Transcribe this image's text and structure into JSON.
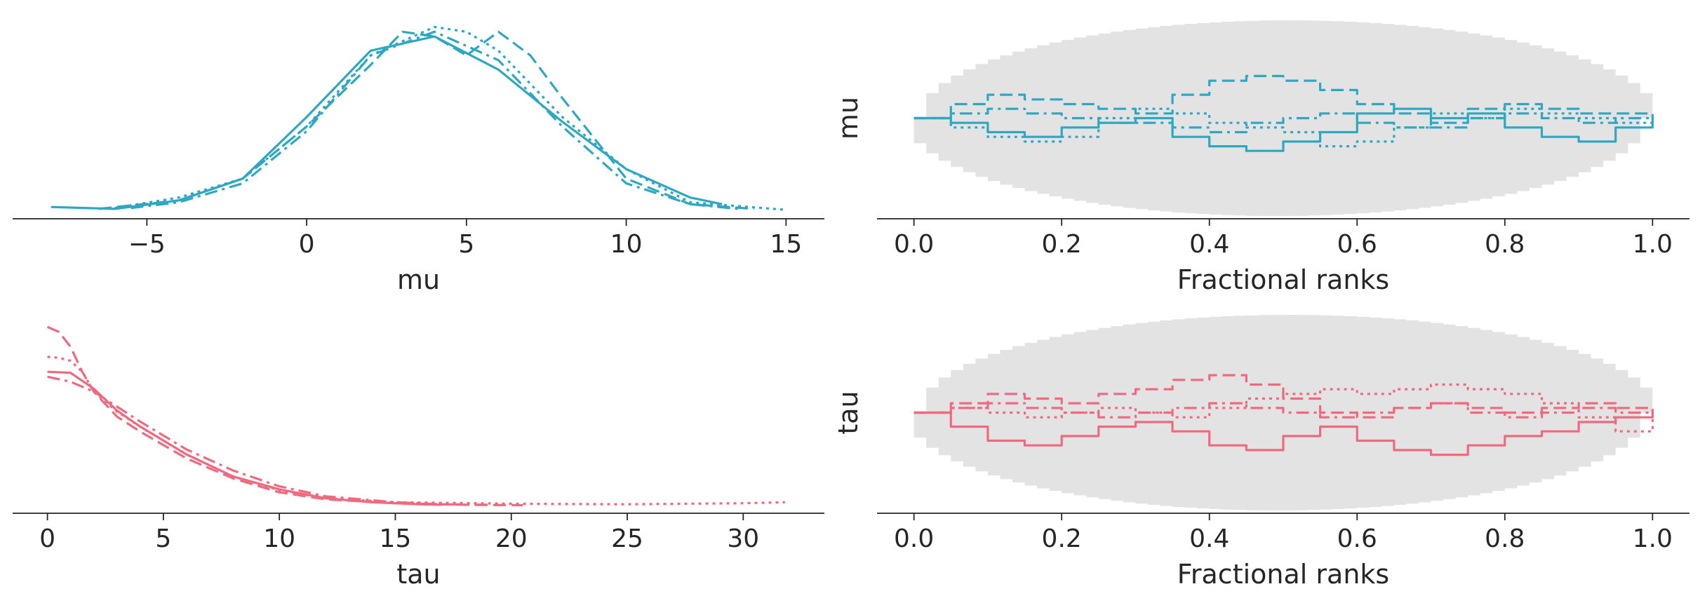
{
  "chart_data": [
    {
      "type": "line",
      "kind": "kde",
      "xlabel": "mu",
      "xlim": [
        -9.2,
        16.2
      ],
      "xticks": [
        "−5",
        "0",
        "5",
        "10",
        "15"
      ],
      "xtick_values": [
        -5,
        0,
        5,
        10,
        15
      ],
      "grid": false,
      "color": "#2ea8c2",
      "series": [
        {
          "linestyle": "solid",
          "x": [
            -8,
            -6,
            -4,
            -2,
            0,
            2,
            4,
            6,
            8,
            10,
            12,
            13
          ],
          "y": [
            0.005,
            0.003,
            0.012,
            0.035,
            0.1,
            0.17,
            0.185,
            0.15,
            0.095,
            0.045,
            0.015,
            0.008
          ]
        },
        {
          "linestyle": "dashed",
          "x": [
            -6.5,
            -4,
            -2,
            0,
            2,
            3,
            4,
            5,
            6,
            7,
            8,
            10,
            12,
            14
          ],
          "y": [
            0.003,
            0.012,
            0.035,
            0.09,
            0.155,
            0.19,
            0.185,
            0.165,
            0.19,
            0.165,
            0.12,
            0.035,
            0.008,
            0.003
          ]
        },
        {
          "linestyle": "dotted",
          "x": [
            -6,
            -4,
            -2,
            0,
            2,
            4,
            5,
            6,
            8,
            10,
            12,
            15
          ],
          "y": [
            0.004,
            0.015,
            0.035,
            0.09,
            0.165,
            0.195,
            0.19,
            0.17,
            0.1,
            0.045,
            0.01,
            0.002
          ]
        },
        {
          "linestyle": "dashdot",
          "x": [
            -5.5,
            -4,
            -2,
            0,
            2,
            4,
            6,
            8,
            10,
            12,
            13.5
          ],
          "y": [
            0.004,
            0.01,
            0.03,
            0.085,
            0.165,
            0.19,
            0.16,
            0.09,
            0.03,
            0.008,
            0.003
          ]
        }
      ]
    },
    {
      "type": "line",
      "kind": "rank_plot",
      "xlabel": "Fractional ranks",
      "ylabel": "mu",
      "xlim": [
        -0.05,
        1.05
      ],
      "xticks": [
        "0.0",
        "0.2",
        "0.4",
        "0.6",
        "0.8",
        "1.0"
      ],
      "xtick_values": [
        0,
        0.2,
        0.4,
        0.6,
        0.8,
        1.0
      ],
      "grid": false,
      "band_color": "#e3e3e3",
      "color": "#2ea8c2",
      "series": [
        {
          "linestyle": "solid",
          "x": [
            0,
            0.05,
            0.1,
            0.15,
            0.2,
            0.25,
            0.3,
            0.35,
            0.4,
            0.45,
            0.5,
            0.55,
            0.6,
            0.65,
            0.7,
            0.75,
            0.8,
            0.85,
            0.9,
            0.95,
            1.0
          ],
          "y": [
            0,
            -0.05,
            -0.15,
            -0.2,
            -0.1,
            -0.05,
            0,
            -0.2,
            -0.3,
            -0.35,
            -0.25,
            -0.15,
            0.05,
            0.1,
            0.0,
            0.05,
            -0.1,
            -0.2,
            -0.25,
            -0.1,
            0
          ]
        },
        {
          "linestyle": "dashed",
          "x": [
            0,
            0.05,
            0.1,
            0.15,
            0.2,
            0.25,
            0.3,
            0.35,
            0.4,
            0.45,
            0.5,
            0.55,
            0.6,
            0.65,
            0.7,
            0.75,
            0.8,
            0.85,
            0.9,
            0.95,
            1.0
          ],
          "y": [
            0,
            0.15,
            0.25,
            0.2,
            0.15,
            0.1,
            0.05,
            0.25,
            0.4,
            0.45,
            0.4,
            0.3,
            0.15,
            0.05,
            -0.05,
            0.1,
            0.15,
            0.1,
            0.05,
            0.05,
            0
          ]
        },
        {
          "linestyle": "dotted",
          "x": [
            0,
            0.05,
            0.1,
            0.15,
            0.2,
            0.25,
            0.3,
            0.35,
            0.4,
            0.45,
            0.5,
            0.55,
            0.6,
            0.65,
            0.7,
            0.75,
            0.8,
            0.85,
            0.9,
            0.95,
            1.0
          ],
          "y": [
            0,
            -0.1,
            -0.2,
            -0.25,
            -0.2,
            0.0,
            0.1,
            0.05,
            -0.05,
            -0.1,
            -0.15,
            -0.3,
            -0.25,
            -0.1,
            0.05,
            0.0,
            0.1,
            0.05,
            0.0,
            -0.05,
            0
          ]
        },
        {
          "linestyle": "dashdot",
          "x": [
            0,
            0.05,
            0.1,
            0.15,
            0.2,
            0.25,
            0.3,
            0.35,
            0.4,
            0.45,
            0.5,
            0.55,
            0.6,
            0.65,
            0.7,
            0.75,
            0.8,
            0.85,
            0.9,
            0.95,
            1.0
          ],
          "y": [
            0,
            0.05,
            0.1,
            0.05,
            0.0,
            -0.05,
            -0.05,
            -0.1,
            -0.15,
            -0.05,
            0.0,
            0.05,
            -0.05,
            -0.1,
            -0.1,
            0.0,
            0.05,
            0.0,
            -0.05,
            0.0,
            0
          ]
        }
      ]
    },
    {
      "type": "line",
      "kind": "kde",
      "xlabel": "tau",
      "xlim": [
        -1.5,
        33.5
      ],
      "xticks": [
        "0",
        "5",
        "10",
        "15",
        "20",
        "25",
        "30"
      ],
      "xtick_values": [
        0,
        5,
        10,
        15,
        20,
        25,
        30
      ],
      "grid": false,
      "color": "#f0697e",
      "series": [
        {
          "linestyle": "solid",
          "x": [
            0,
            1,
            2,
            3,
            4,
            6,
            8,
            10,
            12,
            14,
            16,
            17
          ],
          "y": [
            0.135,
            0.134,
            0.118,
            0.096,
            0.08,
            0.052,
            0.03,
            0.017,
            0.008,
            0.004,
            0.002,
            0.0015
          ]
        },
        {
          "linestyle": "dashed",
          "x": [
            0,
            0.5,
            1,
            1.5,
            2,
            3,
            4,
            6,
            8,
            10,
            12,
            15,
            18,
            20.5
          ],
          "y": [
            0.18,
            0.175,
            0.16,
            0.135,
            0.115,
            0.09,
            0.075,
            0.048,
            0.028,
            0.014,
            0.007,
            0.003,
            0.0015,
            0.001
          ]
        },
        {
          "linestyle": "dotted",
          "x": [
            0,
            0.5,
            1,
            1.5,
            2,
            3,
            4,
            6,
            8,
            10,
            12,
            15,
            20,
            25,
            30,
            31.8
          ],
          "y": [
            0.15,
            0.149,
            0.146,
            0.135,
            0.115,
            0.095,
            0.08,
            0.052,
            0.03,
            0.016,
            0.008,
            0.004,
            0.0025,
            0.002,
            0.003,
            0.004
          ]
        },
        {
          "linestyle": "dashdot",
          "x": [
            0,
            1,
            2,
            3,
            4,
            6,
            8,
            10,
            12,
            15,
            17,
            19
          ],
          "y": [
            0.13,
            0.125,
            0.115,
            0.1,
            0.085,
            0.057,
            0.036,
            0.02,
            0.01,
            0.004,
            0.002,
            0.0015
          ]
        }
      ]
    },
    {
      "type": "line",
      "kind": "rank_plot",
      "xlabel": "Fractional ranks",
      "ylabel": "tau",
      "xlim": [
        -0.05,
        1.05
      ],
      "xticks": [
        "0.0",
        "0.2",
        "0.4",
        "0.6",
        "0.8",
        "1.0"
      ],
      "xtick_values": [
        0,
        0.2,
        0.4,
        0.6,
        0.8,
        1.0
      ],
      "grid": false,
      "band_color": "#e3e3e3",
      "color": "#f0697e",
      "series": [
        {
          "linestyle": "solid",
          "x": [
            0,
            0.05,
            0.1,
            0.15,
            0.2,
            0.25,
            0.3,
            0.35,
            0.4,
            0.45,
            0.5,
            0.55,
            0.6,
            0.65,
            0.7,
            0.75,
            0.8,
            0.85,
            0.9,
            0.95,
            1.0
          ],
          "y": [
            0,
            -0.15,
            -0.3,
            -0.35,
            -0.25,
            -0.15,
            -0.1,
            -0.2,
            -0.35,
            -0.4,
            -0.25,
            -0.15,
            -0.3,
            -0.4,
            -0.45,
            -0.35,
            -0.25,
            -0.2,
            -0.1,
            -0.05,
            0
          ]
        },
        {
          "linestyle": "dashed",
          "x": [
            0,
            0.05,
            0.1,
            0.15,
            0.2,
            0.25,
            0.3,
            0.35,
            0.4,
            0.45,
            0.5,
            0.55,
            0.6,
            0.65,
            0.7,
            0.75,
            0.8,
            0.85,
            0.9,
            0.95,
            1.0
          ],
          "y": [
            0,
            0.1,
            0.2,
            0.15,
            0.1,
            0.2,
            0.25,
            0.35,
            0.4,
            0.3,
            0.15,
            0.0,
            -0.05,
            0.05,
            0.1,
            0.05,
            0.0,
            0.05,
            0.1,
            0.05,
            0
          ]
        },
        {
          "linestyle": "dotted",
          "x": [
            0,
            0.05,
            0.1,
            0.15,
            0.2,
            0.25,
            0.3,
            0.35,
            0.4,
            0.45,
            0.5,
            0.55,
            0.6,
            0.65,
            0.7,
            0.75,
            0.8,
            0.85,
            0.9,
            0.95,
            1.0
          ],
          "y": [
            0,
            0.05,
            0.0,
            -0.05,
            0.0,
            0.05,
            0.0,
            -0.05,
            0.05,
            0.15,
            0.2,
            0.25,
            0.2,
            0.25,
            0.3,
            0.25,
            0.2,
            0.1,
            -0.05,
            -0.2,
            0
          ]
        },
        {
          "linestyle": "dashdot",
          "x": [
            0,
            0.05,
            0.1,
            0.15,
            0.2,
            0.25,
            0.3,
            0.35,
            0.4,
            0.45,
            0.5,
            0.55,
            0.6,
            0.65,
            0.7,
            0.75,
            0.8,
            0.85,
            0.9,
            0.95,
            1.0
          ],
          "y": [
            0,
            0.05,
            0.1,
            0.05,
            0.0,
            -0.05,
            0.0,
            0.05,
            0.1,
            0.05,
            0.0,
            -0.05,
            0.0,
            0.05,
            0.1,
            0.0,
            -0.05,
            0.0,
            0.05,
            0.0,
            0
          ]
        }
      ]
    }
  ]
}
